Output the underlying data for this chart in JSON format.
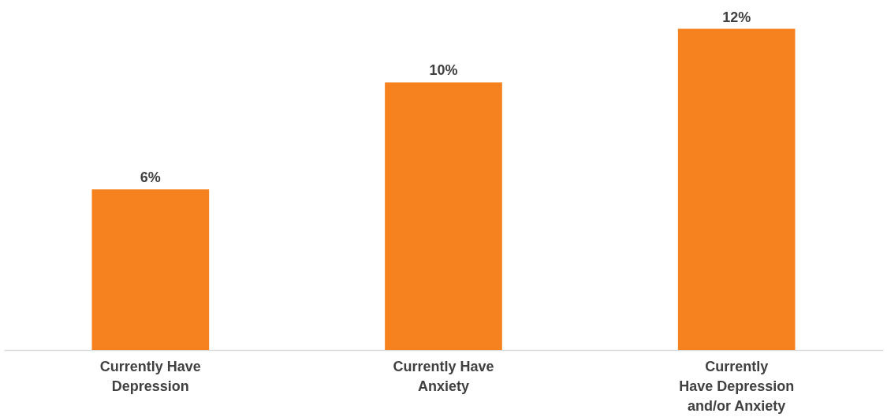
{
  "chart_data": {
    "type": "bar",
    "categories": [
      "Currently Have\nDepression",
      "Currently Have\nAnxiety",
      "Currently\nHave Depression\nand/or Anxiety"
    ],
    "values": [
      6,
      10,
      12
    ],
    "color": "#f5821f",
    "value_labels": [
      "6%",
      "10%",
      "12%"
    ]
  }
}
